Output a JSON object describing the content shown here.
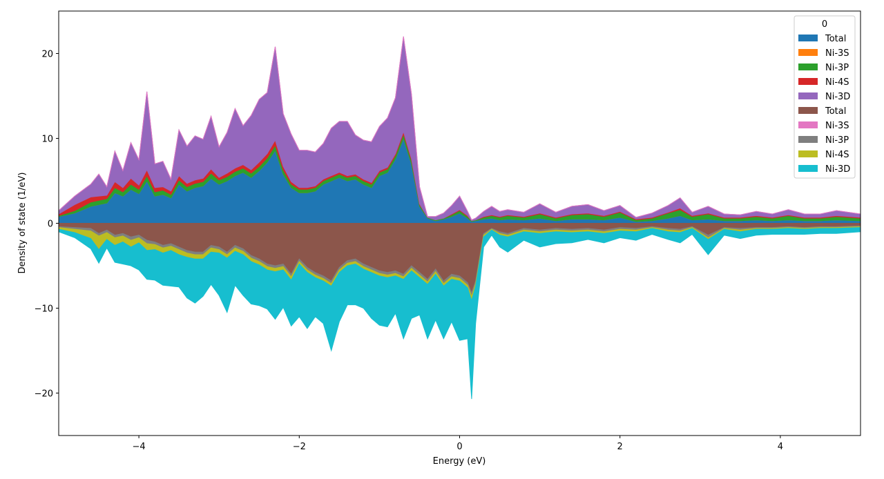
{
  "chart_data": {
    "type": "area",
    "xlabel": "Energy (eV)",
    "ylabel": "Density of state (1/eV)",
    "xlim": [
      -5,
      5
    ],
    "ylim": [
      -25,
      25
    ],
    "xticks": [
      -4,
      -2,
      0,
      2,
      4
    ],
    "yticks": [
      -20,
      -10,
      0,
      10,
      20
    ],
    "xtick_labels": [
      "−4",
      "−2",
      "0",
      "2",
      "4"
    ],
    "ytick_labels": [
      "−20",
      "−10",
      "0",
      "10",
      "20"
    ],
    "legend_title": "0",
    "legend_position": "top-right",
    "grid": false,
    "stacked": true,
    "x": [
      -5.0,
      -4.8,
      -4.6,
      -4.5,
      -4.4,
      -4.3,
      -4.2,
      -4.1,
      -4.0,
      -3.9,
      -3.8,
      -3.7,
      -3.6,
      -3.5,
      -3.4,
      -3.3,
      -3.2,
      -3.1,
      -3.0,
      -2.9,
      -2.8,
      -2.7,
      -2.6,
      -2.5,
      -2.4,
      -2.3,
      -2.2,
      -2.1,
      -2.0,
      -1.9,
      -1.8,
      -1.7,
      -1.6,
      -1.5,
      -1.4,
      -1.3,
      -1.2,
      -1.1,
      -1.0,
      -0.9,
      -0.8,
      -0.7,
      -0.6,
      -0.5,
      -0.4,
      -0.3,
      -0.2,
      -0.1,
      0.0,
      0.1,
      0.15,
      0.2,
      0.3,
      0.4,
      0.5,
      0.6,
      0.8,
      1.0,
      1.2,
      1.4,
      1.6,
      1.8,
      2.0,
      2.2,
      2.4,
      2.6,
      2.75,
      2.9,
      3.1,
      3.3,
      3.5,
      3.7,
      3.9,
      4.1,
      4.3,
      4.5,
      4.7,
      5.0
    ],
    "series": [
      {
        "name": "Total",
        "color": "#1f77b4",
        "values": [
          0.8,
          1.2,
          2.0,
          2.2,
          2.4,
          3.6,
          3.2,
          4.0,
          3.5,
          5.0,
          3.2,
          3.4,
          3.0,
          4.6,
          3.8,
          4.2,
          4.4,
          5.3,
          4.6,
          5.0,
          5.6,
          6.0,
          5.4,
          6.2,
          7.2,
          8.6,
          5.8,
          4.2,
          3.6,
          3.6,
          3.8,
          4.6,
          5.0,
          5.4,
          5.0,
          5.2,
          4.6,
          4.2,
          5.6,
          6.0,
          7.6,
          10.0,
          7.0,
          2.0,
          0.6,
          0.3,
          0.5,
          0.8,
          1.2,
          0.6,
          0.2,
          0.3,
          0.5,
          0.6,
          0.4,
          0.5,
          0.4,
          0.6,
          0.3,
          0.5,
          0.5,
          0.4,
          0.7,
          0.2,
          0.3,
          0.6,
          0.9,
          0.4,
          0.5,
          0.3,
          0.3,
          0.4,
          0.3,
          0.4,
          0.3,
          0.3,
          0.4,
          0.3
        ]
      },
      {
        "name": "Ni-3S",
        "color": "#ff7f0e",
        "values": [
          0,
          0,
          0,
          0,
          0,
          0,
          0,
          0,
          0,
          0,
          0,
          0,
          0,
          0,
          0,
          0,
          0,
          0,
          0,
          0,
          0,
          0,
          0,
          0,
          0,
          0,
          0,
          0,
          0,
          0,
          0,
          0,
          0,
          0,
          0,
          0,
          0,
          0,
          0,
          0,
          0,
          0,
          0,
          0,
          0,
          0,
          0,
          0,
          0,
          0,
          0,
          0,
          0,
          0,
          0,
          0,
          0,
          0,
          0,
          0,
          0,
          0,
          0,
          0,
          0,
          0,
          0,
          0,
          0,
          0,
          0,
          0,
          0,
          0,
          0,
          0,
          0,
          0
        ]
      },
      {
        "name": "Ni-3P",
        "color": "#2ca02c",
        "values": [
          0.1,
          0.3,
          0.5,
          0.5,
          0.5,
          0.6,
          0.5,
          0.6,
          0.5,
          0.6,
          0.5,
          0.5,
          0.4,
          0.5,
          0.5,
          0.5,
          0.5,
          0.6,
          0.5,
          0.5,
          0.5,
          0.5,
          0.5,
          0.5,
          0.5,
          0.6,
          0.5,
          0.4,
          0.4,
          0.4,
          0.4,
          0.4,
          0.4,
          0.4,
          0.4,
          0.4,
          0.4,
          0.4,
          0.4,
          0.4,
          0.4,
          0.5,
          0.4,
          0.2,
          0.1,
          0.1,
          0.1,
          0.2,
          0.3,
          0.2,
          0.1,
          0.1,
          0.2,
          0.3,
          0.3,
          0.4,
          0.3,
          0.5,
          0.3,
          0.5,
          0.6,
          0.4,
          0.6,
          0.2,
          0.3,
          0.6,
          0.7,
          0.4,
          0.6,
          0.3,
          0.3,
          0.4,
          0.3,
          0.5,
          0.3,
          0.3,
          0.4,
          0.3
        ]
      },
      {
        "name": "Ni-4S",
        "color": "#d62728",
        "values": [
          0.2,
          0.7,
          0.6,
          0.5,
          0.4,
          0.7,
          0.5,
          0.7,
          0.5,
          0.7,
          0.5,
          0.4,
          0.4,
          0.5,
          0.4,
          0.4,
          0.4,
          0.5,
          0.3,
          0.4,
          0.4,
          0.4,
          0.4,
          0.5,
          0.5,
          0.6,
          0.4,
          0.3,
          0.2,
          0.2,
          0.2,
          0.2,
          0.2,
          0.2,
          0.2,
          0.2,
          0.2,
          0.2,
          0.2,
          0.2,
          0.2,
          0.3,
          0.2,
          0.1,
          0.0,
          0.0,
          0.0,
          0.1,
          0.1,
          0.1,
          0.0,
          0.0,
          0.1,
          0.1,
          0.1,
          0.1,
          0.1,
          0.1,
          0.1,
          0.1,
          0.1,
          0.1,
          0.1,
          0.1,
          0.1,
          0.1,
          0.2,
          0.1,
          0.1,
          0.1,
          0.1,
          0.1,
          0.1,
          0.1,
          0.1,
          0.1,
          0.1,
          0.1
        ]
      },
      {
        "name": "Ni-3D",
        "color": "#9467bd",
        "values": [
          0.4,
          1.0,
          1.5,
          2.6,
          1.0,
          3.6,
          2.0,
          4.2,
          3.0,
          9.2,
          2.8,
          3.0,
          1.4,
          5.4,
          4.4,
          5.2,
          4.6,
          6.2,
          3.6,
          4.8,
          7.0,
          4.6,
          6.4,
          7.4,
          7.2,
          11.0,
          6.2,
          5.6,
          4.4,
          4.4,
          4.0,
          4.2,
          5.6,
          6.0,
          6.4,
          4.6,
          4.6,
          4.8,
          5.2,
          5.8,
          6.6,
          11.2,
          7.6,
          2.0,
          0.1,
          0.4,
          0.6,
          1.0,
          1.6,
          0.5,
          0.1,
          0.2,
          0.6,
          1.0,
          0.6,
          0.6,
          0.5,
          1.1,
          0.6,
          0.9,
          1.0,
          0.6,
          0.7,
          0.2,
          0.5,
          0.8,
          1.2,
          0.4,
          0.8,
          0.4,
          0.3,
          0.5,
          0.4,
          0.6,
          0.4,
          0.4,
          0.6,
          0.4
        ]
      },
      {
        "name": "Total",
        "color": "#8c564b",
        "values": [
          -0.4,
          -0.5,
          -0.6,
          -1.2,
          -0.8,
          -1.4,
          -1.2,
          -1.6,
          -1.4,
          -2.0,
          -2.2,
          -2.6,
          -2.4,
          -2.8,
          -3.2,
          -3.4,
          -3.4,
          -2.6,
          -2.8,
          -3.4,
          -2.6,
          -3.0,
          -3.8,
          -4.2,
          -4.8,
          -5.0,
          -4.8,
          -6.0,
          -4.2,
          -5.2,
          -5.8,
          -6.2,
          -6.8,
          -5.2,
          -4.4,
          -4.2,
          -4.8,
          -5.2,
          -5.6,
          -5.8,
          -5.6,
          -6.0,
          -5.0,
          -5.8,
          -6.6,
          -5.4,
          -6.8,
          -6.0,
          -6.2,
          -7.0,
          -8.2,
          -6.8,
          -1.2,
          -0.6,
          -1.0,
          -1.2,
          -0.6,
          -0.8,
          -0.6,
          -0.7,
          -0.6,
          -0.8,
          -0.5,
          -0.6,
          -0.4,
          -0.6,
          -0.7,
          -0.4,
          -1.4,
          -0.5,
          -0.6,
          -0.5,
          -0.5,
          -0.4,
          -0.5,
          -0.4,
          -0.4,
          -0.3
        ]
      },
      {
        "name": "Ni-3S",
        "color": "#e377c2",
        "values": [
          0,
          0,
          0,
          0,
          0,
          0,
          0,
          0,
          0,
          0,
          0,
          0,
          0,
          0,
          0,
          0,
          0,
          0,
          0,
          0,
          0,
          0,
          0,
          0,
          0,
          0,
          0,
          0,
          0,
          0,
          0,
          0,
          0,
          0,
          0,
          0,
          0,
          0,
          0,
          0,
          0,
          0,
          0,
          0,
          0,
          0,
          0,
          0,
          0,
          0,
          0,
          0,
          0,
          0,
          0,
          0,
          0,
          0,
          0,
          0,
          0,
          0,
          0,
          0,
          0,
          0,
          0,
          0,
          0,
          0,
          0,
          0,
          0,
          0,
          0,
          0,
          0,
          0
        ]
      },
      {
        "name": "Ni-3P",
        "color": "#7f7f7f",
        "values": [
          -0.1,
          -0.2,
          -0.3,
          -0.3,
          -0.3,
          -0.3,
          -0.3,
          -0.4,
          -0.3,
          -0.4,
          -0.3,
          -0.3,
          -0.3,
          -0.3,
          -0.3,
          -0.3,
          -0.3,
          -0.3,
          -0.3,
          -0.3,
          -0.3,
          -0.3,
          -0.3,
          -0.3,
          -0.3,
          -0.3,
          -0.3,
          -0.3,
          -0.3,
          -0.3,
          -0.3,
          -0.3,
          -0.3,
          -0.3,
          -0.3,
          -0.3,
          -0.3,
          -0.3,
          -0.3,
          -0.3,
          -0.3,
          -0.3,
          -0.3,
          -0.3,
          -0.3,
          -0.3,
          -0.3,
          -0.3,
          -0.3,
          -0.3,
          -0.4,
          -0.3,
          -0.2,
          -0.1,
          -0.2,
          -0.2,
          -0.2,
          -0.2,
          -0.2,
          -0.2,
          -0.2,
          -0.2,
          -0.2,
          -0.2,
          -0.1,
          -0.2,
          -0.2,
          -0.1,
          -0.3,
          -0.1,
          -0.2,
          -0.1,
          -0.1,
          -0.1,
          -0.1,
          -0.1,
          -0.1,
          -0.1
        ]
      },
      {
        "name": "Ni-4S",
        "color": "#bcbd22",
        "values": [
          -0.2,
          -0.4,
          -0.9,
          -1.6,
          -0.8,
          -0.9,
          -0.7,
          -0.8,
          -0.6,
          -0.8,
          -0.6,
          -0.6,
          -0.5,
          -0.6,
          -0.5,
          -0.5,
          -0.5,
          -0.5,
          -0.4,
          -0.4,
          -0.4,
          -0.4,
          -0.4,
          -0.4,
          -0.4,
          -0.4,
          -0.4,
          -0.4,
          -0.3,
          -0.3,
          -0.3,
          -0.3,
          -0.3,
          -0.3,
          -0.3,
          -0.3,
          -0.3,
          -0.3,
          -0.3,
          -0.3,
          -0.3,
          -0.3,
          -0.3,
          -0.3,
          -0.3,
          -0.3,
          -0.3,
          -0.3,
          -0.3,
          -0.3,
          -0.5,
          -0.3,
          -0.2,
          -0.1,
          -0.2,
          -0.2,
          -0.2,
          -0.2,
          -0.2,
          -0.2,
          -0.2,
          -0.2,
          -0.2,
          -0.2,
          -0.1,
          -0.2,
          -0.2,
          -0.1,
          -0.2,
          -0.1,
          -0.2,
          -0.1,
          -0.1,
          -0.1,
          -0.1,
          -0.1,
          -0.1,
          -0.1
        ]
      },
      {
        "name": "Ni-3D",
        "color": "#17becf",
        "values": [
          -0.3,
          -0.6,
          -1.2,
          -1.6,
          -1.0,
          -2.0,
          -2.6,
          -2.2,
          -3.2,
          -3.4,
          -3.6,
          -3.8,
          -4.2,
          -3.8,
          -4.8,
          -5.2,
          -4.4,
          -3.8,
          -5.0,
          -6.4,
          -4.0,
          -4.8,
          -5.0,
          -4.8,
          -4.6,
          -5.6,
          -4.4,
          -5.4,
          -6.2,
          -6.6,
          -4.6,
          -5.0,
          -7.6,
          -5.8,
          -4.6,
          -4.8,
          -4.6,
          -5.4,
          -5.8,
          -5.8,
          -4.4,
          -7.0,
          -5.6,
          -4.4,
          -6.4,
          -5.4,
          -6.2,
          -5.0,
          -7.0,
          -6.0,
          -11.6,
          -4.4,
          -1.2,
          -0.6,
          -1.4,
          -1.8,
          -1.0,
          -1.6,
          -1.4,
          -1.2,
          -0.9,
          -1.1,
          -0.8,
          -1.0,
          -0.7,
          -0.9,
          -1.2,
          -0.7,
          -1.8,
          -0.7,
          -0.8,
          -0.7,
          -0.6,
          -0.7,
          -0.6,
          -0.6,
          -0.6,
          -0.5
        ]
      }
    ]
  }
}
